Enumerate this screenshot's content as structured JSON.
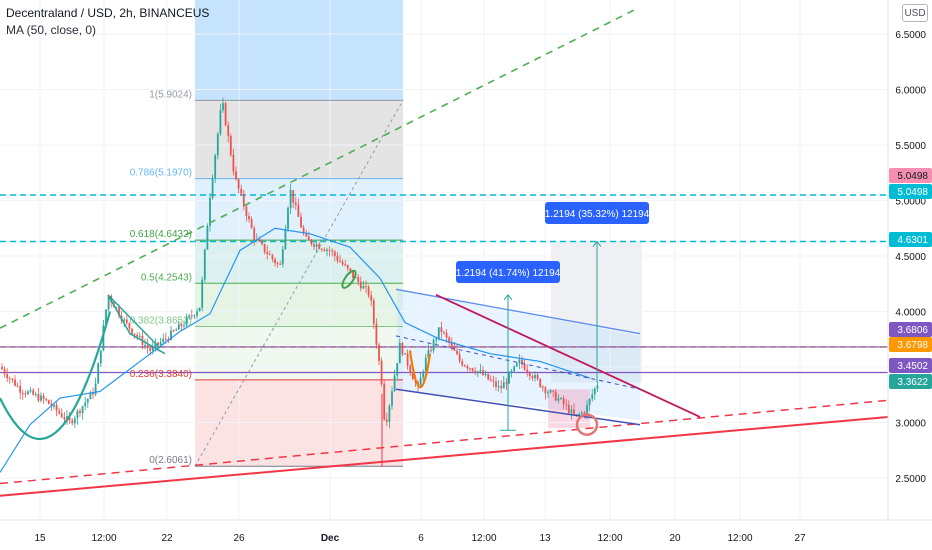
{
  "header": {
    "title": "Decentraland / USD, 2h, BINANCEUS",
    "indicator": "MA (50, close, 0)",
    "currency": "USD"
  },
  "colors": {
    "up": "#26a69a",
    "down": "#ef5350",
    "ma": "#2196f3",
    "fib_high": "#9598a1",
    "fib_786": "#64b5f6",
    "fib_618": "#43a047",
    "fib_05": "#4caf50",
    "fib_382": "#81c784",
    "fib_236": "#e53935",
    "fib_low": "#787b86"
  },
  "chart_data": {
    "type": "candlestick",
    "symbol": "Decentraland / USD",
    "timeframe": "2h",
    "exchange": "BINANCEUS",
    "ylim": [
      2.2,
      6.8
    ],
    "y_ticks": [
      "2.5000",
      "3.0000",
      "3.5000",
      "4.0000",
      "4.5000",
      "5.0000",
      "5.5000",
      "6.0000",
      "6.5000"
    ],
    "x_ticks": [
      "15",
      "12:00",
      "22",
      "26",
      "Dec",
      "6",
      "12:00",
      "13",
      "12:00",
      "20",
      "12:00",
      "27"
    ],
    "series": [
      {
        "name": "MA (50, close, 0)",
        "points": [
          [
            0,
            2.55
          ],
          [
            30,
            2.98
          ],
          [
            60,
            3.22
          ],
          [
            100,
            3.28
          ],
          [
            140,
            3.55
          ],
          [
            180,
            3.82
          ],
          [
            210,
            3.98
          ],
          [
            240,
            4.55
          ],
          [
            275,
            4.75
          ],
          [
            310,
            4.7
          ],
          [
            350,
            4.58
          ],
          [
            380,
            4.3
          ],
          [
            405,
            3.9
          ],
          [
            440,
            3.75
          ],
          [
            490,
            3.62
          ],
          [
            540,
            3.55
          ],
          [
            590,
            3.4
          ]
        ]
      }
    ],
    "price_path": [
      [
        0,
        3.5
      ],
      [
        20,
        3.3
      ],
      [
        45,
        3.2
      ],
      [
        70,
        3.0
      ],
      [
        95,
        3.3
      ],
      [
        108,
        4.15
      ],
      [
        125,
        3.9
      ],
      [
        150,
        3.65
      ],
      [
        165,
        3.75
      ],
      [
        185,
        3.9
      ],
      [
        200,
        4.05
      ],
      [
        210,
        5.05
      ],
      [
        222,
        5.9
      ],
      [
        235,
        5.2
      ],
      [
        255,
        4.65
      ],
      [
        280,
        4.4
      ],
      [
        290,
        5.1
      ],
      [
        305,
        4.65
      ],
      [
        330,
        4.55
      ],
      [
        350,
        4.35
      ],
      [
        370,
        4.15
      ],
      [
        382,
        3.35
      ],
      [
        385,
        2.95
      ],
      [
        400,
        3.7
      ],
      [
        418,
        3.3
      ],
      [
        425,
        3.55
      ],
      [
        440,
        3.85
      ],
      [
        460,
        3.55
      ],
      [
        480,
        3.45
      ],
      [
        500,
        3.3
      ],
      [
        520,
        3.55
      ],
      [
        545,
        3.3
      ],
      [
        560,
        3.2
      ],
      [
        575,
        3.05
      ],
      [
        585,
        3.1
      ],
      [
        592,
        3.25
      ],
      [
        598,
        3.36
      ]
    ],
    "fibonacci": {
      "levels": [
        {
          "ratio": "1",
          "label": "1(5.9024)",
          "price": 5.9024
        },
        {
          "ratio": "0.786",
          "label": "0.786(5.1970)",
          "price": 5.197
        },
        {
          "ratio": "0.618",
          "label": "0.618(4.6432)",
          "price": 4.6432
        },
        {
          "ratio": "0.5",
          "label": "0.5(4.2543)",
          "price": 4.2543
        },
        {
          "ratio": "0.382",
          "label": "0.382(3.8653)",
          "price": 3.8653
        },
        {
          "ratio": "0.236",
          "label": "0.236(3.3840)",
          "price": 3.384
        },
        {
          "ratio": "0",
          "label": "0(2.6061)",
          "price": 2.6061
        }
      ]
    },
    "horizontal_lines": [
      {
        "price": 5.0498,
        "color": "#00bcd4",
        "style": "dashed"
      },
      {
        "price": 4.6301,
        "color": "#00bcd4",
        "style": "dashed"
      },
      {
        "price": 3.6798,
        "color": "#ff9800",
        "style": "dashed"
      },
      {
        "price": 3.6806,
        "color": "#7e57c2",
        "style": "solid"
      },
      {
        "price": 3.4502,
        "color": "#7e57c2",
        "style": "solid"
      }
    ],
    "measure_labels": [
      "1.2194 (41.74%) 12194",
      "1.2194 (35.32%) 12194"
    ],
    "price_labels": [
      {
        "text": "5.0498",
        "bg": "#f48fb1",
        "color": "#131722"
      },
      {
        "text": "5.0498",
        "bg": "#00bcd4",
        "color": "#ffffff"
      },
      {
        "text": "4.6301",
        "bg": "#00bcd4",
        "color": "#ffffff"
      },
      {
        "text": "3.6806",
        "bg": "#7e57c2",
        "color": "#ffffff"
      },
      {
        "text": "3.6798",
        "bg": "#ff9800",
        "color": "#ffffff"
      },
      {
        "text": "3.4502",
        "bg": "#7e57c2",
        "color": "#ffffff"
      },
      {
        "text": "3.3622",
        "bg": "#26a69a",
        "color": "#ffffff"
      }
    ]
  }
}
